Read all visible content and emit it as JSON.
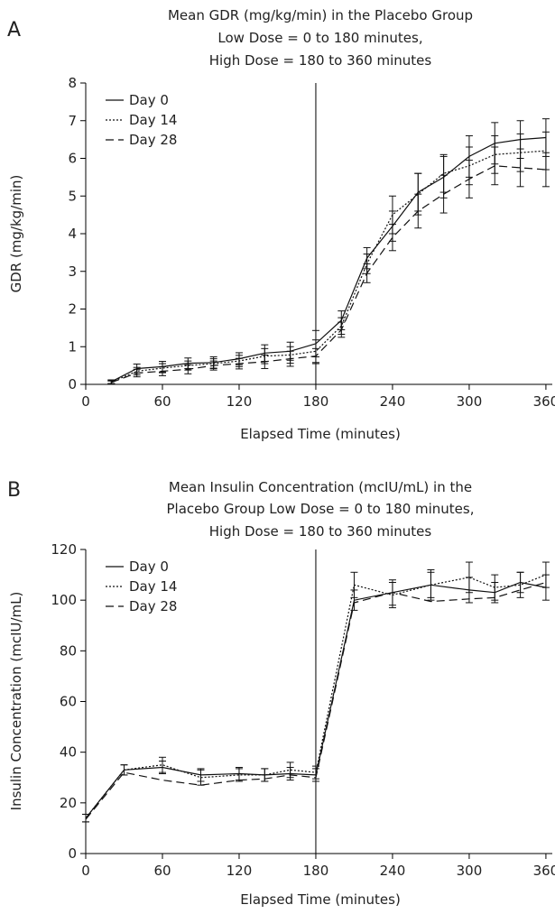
{
  "chart_data": [
    {
      "panel": "A",
      "type": "line",
      "title": [
        "Mean GDR (mg/kg/min) in the Placebo Group",
        "Low Dose = 0 to 180 minutes,",
        "High Dose = 180 to 360 minutes"
      ],
      "xlabel": "Elapsed Time (minutes)",
      "ylabel": "GDR (mg/kg/min)",
      "xlim": [
        0,
        365
      ],
      "ylim": [
        0,
        8
      ],
      "xticks": [
        0,
        60,
        120,
        180,
        240,
        300,
        360
      ],
      "yticks": [
        0,
        1,
        2,
        3,
        4,
        5,
        6,
        7,
        8
      ],
      "vline": 180,
      "legend": "top-left",
      "x": [
        20,
        40,
        60,
        80,
        100,
        120,
        140,
        160,
        180,
        200,
        220,
        240,
        260,
        280,
        300,
        320,
        340,
        360
      ],
      "series": [
        {
          "name": "Day 0",
          "dash": "solid",
          "values": [
            0.07,
            0.42,
            0.47,
            0.56,
            0.58,
            0.68,
            0.83,
            0.88,
            1.08,
            1.7,
            3.35,
            4.2,
            5.1,
            5.5,
            6.05,
            6.4,
            6.5,
            6.55
          ],
          "err": [
            0.05,
            0.12,
            0.14,
            0.14,
            0.15,
            0.16,
            0.22,
            0.24,
            0.35,
            0.25,
            0.28,
            0.4,
            0.5,
            0.55,
            0.55,
            0.55,
            0.5,
            0.5
          ]
        },
        {
          "name": "Day 14",
          "dash": "dotted",
          "values": [
            0.06,
            0.35,
            0.43,
            0.5,
            0.55,
            0.62,
            0.75,
            0.78,
            0.88,
            1.55,
            3.2,
            4.5,
            5.05,
            5.6,
            5.8,
            6.1,
            6.15,
            6.2
          ],
          "err": [
            0.04,
            0.1,
            0.12,
            0.12,
            0.13,
            0.15,
            0.2,
            0.22,
            0.3,
            0.22,
            0.26,
            0.5,
            0.55,
            0.5,
            0.5,
            0.5,
            0.5,
            0.5
          ]
        },
        {
          "name": "Day 28",
          "dash": "dashed",
          "values": [
            0.05,
            0.3,
            0.35,
            0.4,
            0.5,
            0.55,
            0.6,
            0.68,
            0.75,
            1.45,
            2.95,
            3.9,
            4.6,
            5.05,
            5.45,
            5.8,
            5.75,
            5.7
          ],
          "err": [
            0.04,
            0.1,
            0.12,
            0.12,
            0.12,
            0.14,
            0.18,
            0.2,
            0.2,
            0.2,
            0.25,
            0.35,
            0.45,
            0.5,
            0.5,
            0.5,
            0.5,
            0.45
          ]
        }
      ]
    },
    {
      "panel": "B",
      "type": "line",
      "title": [
        "Mean Insulin Concentration (mcIU/mL) in the",
        "Placebo Group Low Dose = 0 to 180 minutes,",
        "High Dose = 180 to 360 minutes"
      ],
      "xlabel": "Elapsed Time (minutes)",
      "ylabel": "Insulin Concentration (mcIU/mL)",
      "xlim": [
        0,
        365
      ],
      "ylim": [
        0,
        120
      ],
      "xticks": [
        0,
        60,
        120,
        180,
        240,
        300,
        360
      ],
      "yticks": [
        0,
        20,
        40,
        60,
        80,
        100,
        120
      ],
      "vline": 180,
      "legend": "top-left",
      "x": [
        0,
        30,
        60,
        90,
        120,
        140,
        160,
        180,
        210,
        240,
        270,
        300,
        320,
        340,
        360
      ],
      "series": [
        {
          "name": "Day 0",
          "dash": "solid",
          "values": [
            14,
            33,
            34,
            31,
            31.5,
            31,
            31.5,
            31,
            100,
            103,
            106,
            104,
            103,
            107,
            105
          ],
          "err": [
            1.5,
            2,
            2.5,
            2.5,
            2.5,
            2.5,
            2.5,
            2.5,
            4,
            5,
            5,
            5,
            4,
            4,
            5
          ]
        },
        {
          "name": "Day 14",
          "dash": "dotted",
          "values": [
            14,
            33,
            35,
            30,
            31,
            31,
            33,
            32,
            106,
            102,
            106,
            109,
            105,
            106,
            110
          ],
          "err": [
            1.5,
            2,
            3,
            3,
            2.5,
            2.5,
            3,
            2.5,
            5,
            5,
            6,
            6,
            5,
            5,
            5
          ]
        },
        {
          "name": "Day 28",
          "dash": "dashed",
          "values": [
            13.5,
            32,
            29,
            27,
            29,
            29.5,
            31,
            30,
            99,
            103,
            99.5,
            100.5,
            101,
            104,
            107
          ]
        }
      ]
    }
  ]
}
